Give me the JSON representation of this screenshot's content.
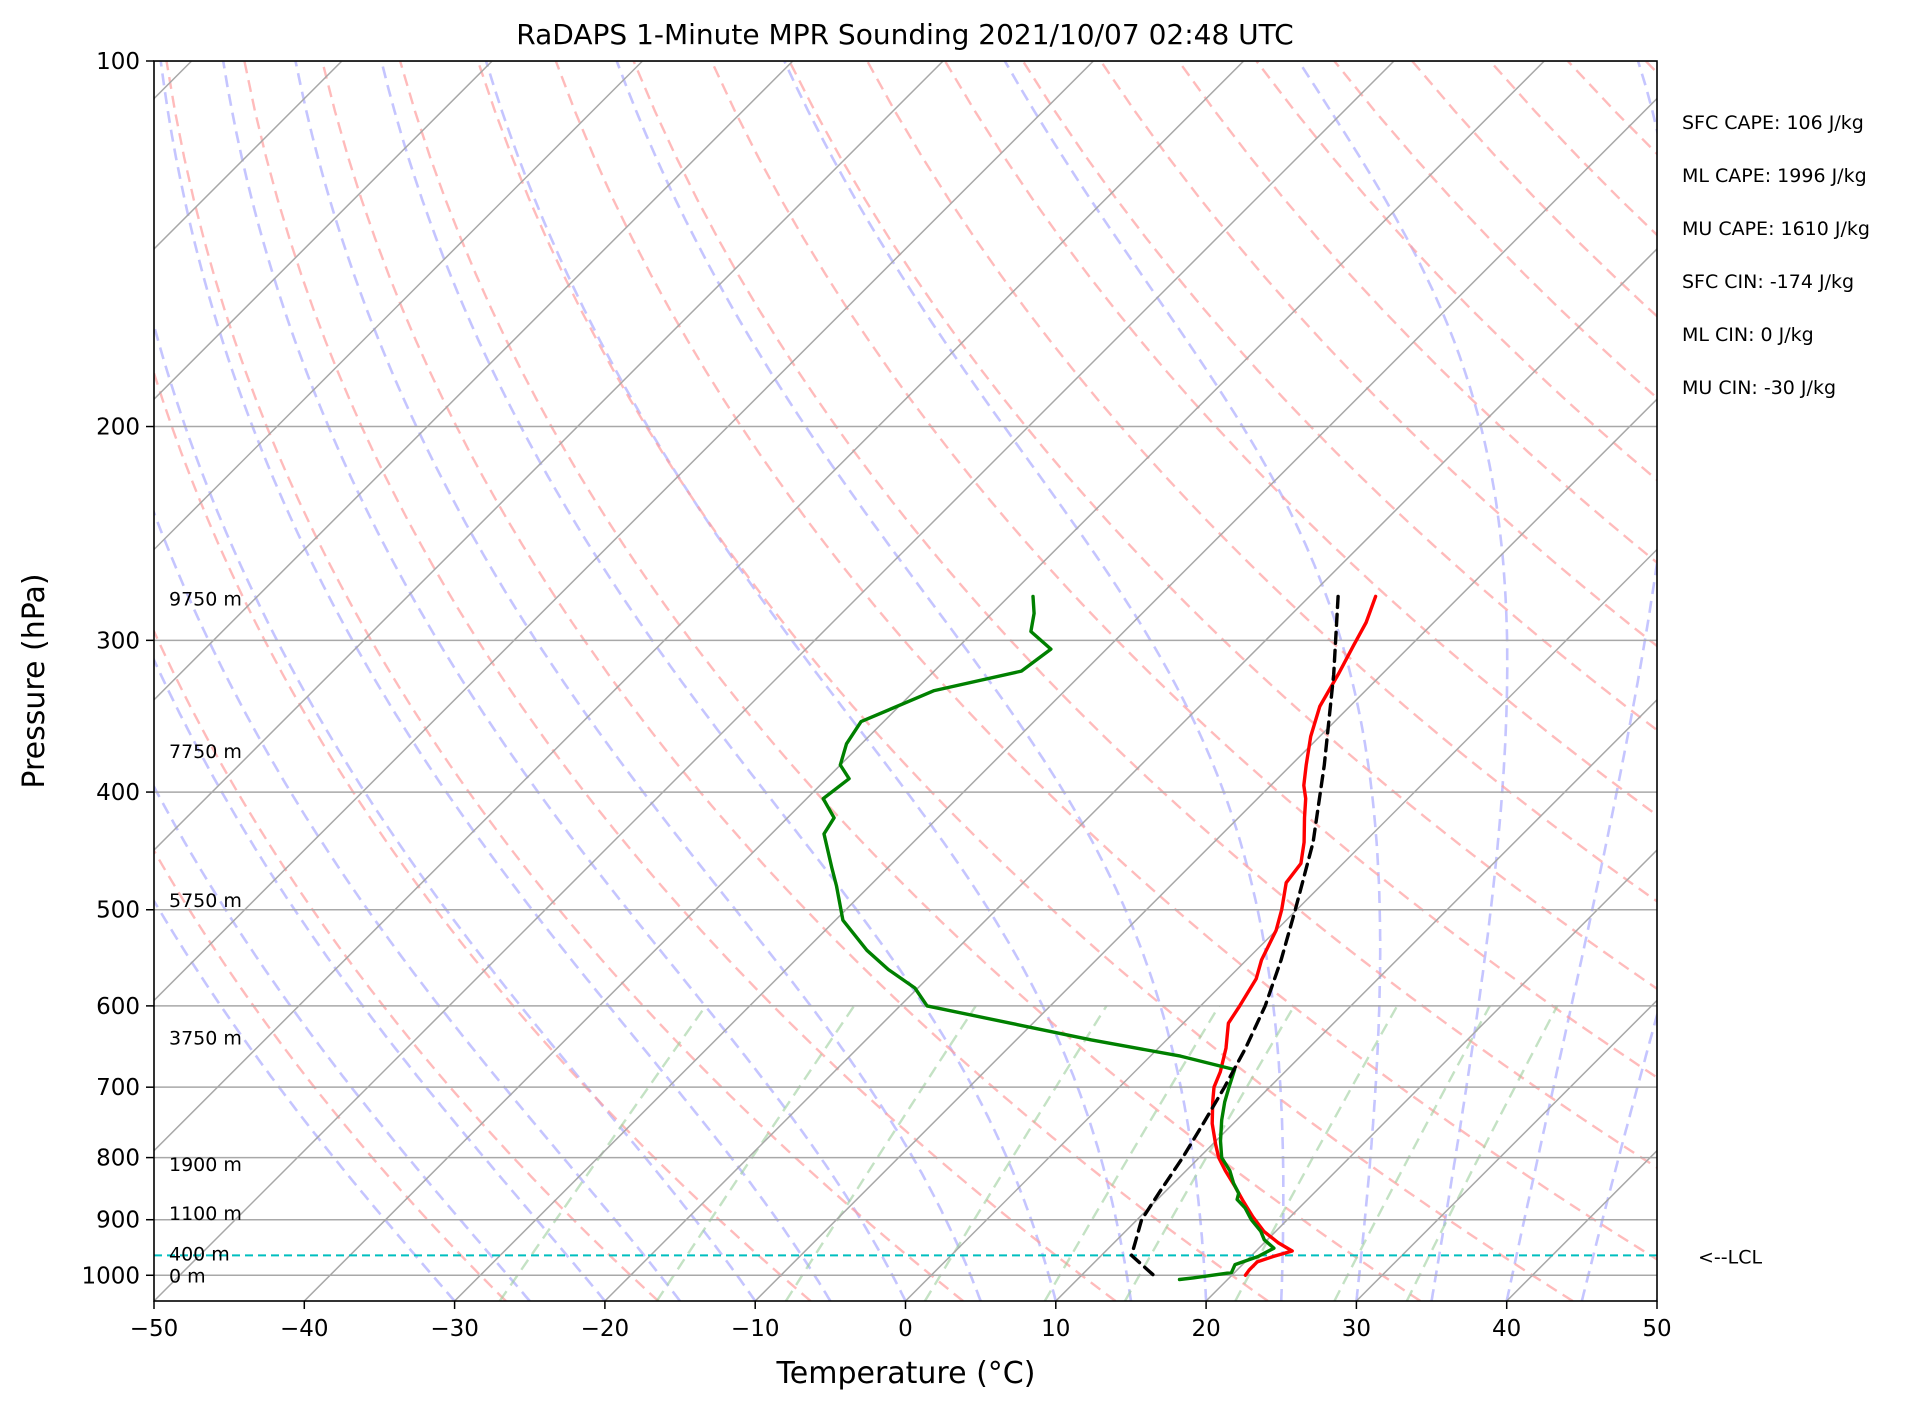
{
  "chart_data": {
    "type": "skew-t log-p",
    "title": "RaDAPS 1-Minute MPR Sounding 2021/10/07 02:48 UTC",
    "xlabel": "Temperature (°C)",
    "ylabel": "Pressure (hPa)",
    "xlim": [
      -50,
      50
    ],
    "ylim": [
      1050,
      100
    ],
    "y_scale": "log",
    "grid": true,
    "x_ticks": [
      -50,
      -40,
      -30,
      -20,
      -10,
      0,
      10,
      20,
      30,
      40,
      50
    ],
    "x_tick_labels": [
      "−50",
      "−40",
      "−30",
      "−20",
      "−10",
      "0",
      "10",
      "20",
      "30",
      "40",
      "50"
    ],
    "y_ticks": [
      100,
      200,
      300,
      400,
      500,
      600,
      700,
      800,
      900,
      1000
    ],
    "y_tick_labels": [
      "100",
      "200",
      "300",
      "400",
      "500",
      "600",
      "700",
      "800",
      "900",
      "1000"
    ],
    "height_labels": [
      {
        "text": "9750 m",
        "pressure": 277
      },
      {
        "text": "7750 m",
        "pressure": 370
      },
      {
        "text": "5750 m",
        "pressure": 491
      },
      {
        "text": "3750 m",
        "pressure": 637
      },
      {
        "text": "1900 m",
        "pressure": 810
      },
      {
        "text": "1100 m",
        "pressure": 889
      },
      {
        "text": "400 m",
        "pressure": 960
      },
      {
        "text": "0 m",
        "pressure": 1000
      }
    ],
    "stats": [
      "SFC CAPE: 106 J/kg",
      "ML CAPE: 1996 J/kg",
      "MU CAPE: 1610 J/kg",
      "SFC CIN: -174 J/kg",
      "ML CIN: 0 J/kg",
      "MU CIN: -30 J/kg"
    ],
    "lcl": {
      "label": "<--LCL",
      "pressure": 963
    },
    "series": [
      {
        "color": "#ff0000",
        "points": [
          [
            276,
            -15.6
          ],
          [
            290,
            -14.5
          ],
          [
            303,
            -13.8
          ],
          [
            320,
            -12.9
          ],
          [
            340,
            -12.0
          ],
          [
            360,
            -10.6
          ],
          [
            380,
            -9.0
          ],
          [
            395,
            -7.8
          ],
          [
            405,
            -6.8
          ],
          [
            420,
            -5.6
          ],
          [
            440,
            -4.0
          ],
          [
            458,
            -2.8
          ],
          [
            475,
            -2.5
          ],
          [
            500,
            -1.0
          ],
          [
            520,
            0.0
          ],
          [
            550,
            1.0
          ],
          [
            570,
            1.9
          ],
          [
            600,
            2.6
          ],
          [
            620,
            3.0
          ],
          [
            650,
            4.5
          ],
          [
            680,
            5.7
          ],
          [
            700,
            6.3
          ],
          [
            720,
            7.2
          ],
          [
            750,
            8.6
          ],
          [
            780,
            10.2
          ],
          [
            800,
            11.3
          ],
          [
            820,
            12.6
          ],
          [
            845,
            14.3
          ],
          [
            870,
            15.9
          ],
          [
            895,
            17.5
          ],
          [
            920,
            19.2
          ],
          [
            940,
            20.9
          ],
          [
            955,
            22.4
          ],
          [
            965,
            21.5
          ],
          [
            975,
            20.8
          ],
          [
            990,
            20.8
          ],
          [
            1000,
            20.9
          ]
        ]
      },
      {
        "color": "#008000",
        "points": [
          [
            276,
            -38.4
          ],
          [
            285,
            -37.2
          ],
          [
            295,
            -36.2
          ],
          [
            305,
            -33.7
          ],
          [
            318,
            -34.2
          ],
          [
            330,
            -38.7
          ],
          [
            350,
            -41.5
          ],
          [
            365,
            -41.0
          ],
          [
            380,
            -40.0
          ],
          [
            390,
            -38.5
          ],
          [
            405,
            -38.9
          ],
          [
            420,
            -36.9
          ],
          [
            433,
            -36.5
          ],
          [
            462,
            -33.7
          ],
          [
            478,
            -32.2
          ],
          [
            510,
            -29.5
          ],
          [
            540,
            -25.9
          ],
          [
            560,
            -23.2
          ],
          [
            580,
            -20.2
          ],
          [
            600,
            -18.2
          ],
          [
            620,
            -11.5
          ],
          [
            640,
            -5.0
          ],
          [
            660,
            2.0
          ],
          [
            677,
            6.5
          ],
          [
            700,
            7.3
          ],
          [
            720,
            8.0
          ],
          [
            745,
            9.0
          ],
          [
            775,
            10.3
          ],
          [
            800,
            11.5
          ],
          [
            820,
            12.9
          ],
          [
            840,
            14.0
          ],
          [
            856,
            15.0
          ],
          [
            866,
            15.3
          ],
          [
            880,
            16.4
          ],
          [
            900,
            17.6
          ],
          [
            920,
            19.0
          ],
          [
            935,
            19.8
          ],
          [
            950,
            21.0
          ],
          [
            965,
            20.5
          ],
          [
            980,
            19.5
          ],
          [
            995,
            19.8
          ],
          [
            1005,
            17.6
          ],
          [
            1008,
            16.8
          ]
        ]
      },
      {
        "color": "#000000",
        "dashed": true,
        "points": [
          [
            276,
            -18.1
          ],
          [
            320,
            -13.2
          ],
          [
            380,
            -7.8
          ],
          [
            440,
            -3.4
          ],
          [
            500,
            -0.1
          ],
          [
            550,
            2.3
          ],
          [
            600,
            4.3
          ],
          [
            650,
            5.8
          ],
          [
            700,
            7.0
          ],
          [
            750,
            8.0
          ],
          [
            800,
            8.9
          ],
          [
            850,
            9.6
          ],
          [
            900,
            10.3
          ],
          [
            940,
            11.4
          ],
          [
            963,
            12.0
          ],
          [
            1000,
            14.8
          ]
        ]
      }
    ]
  }
}
